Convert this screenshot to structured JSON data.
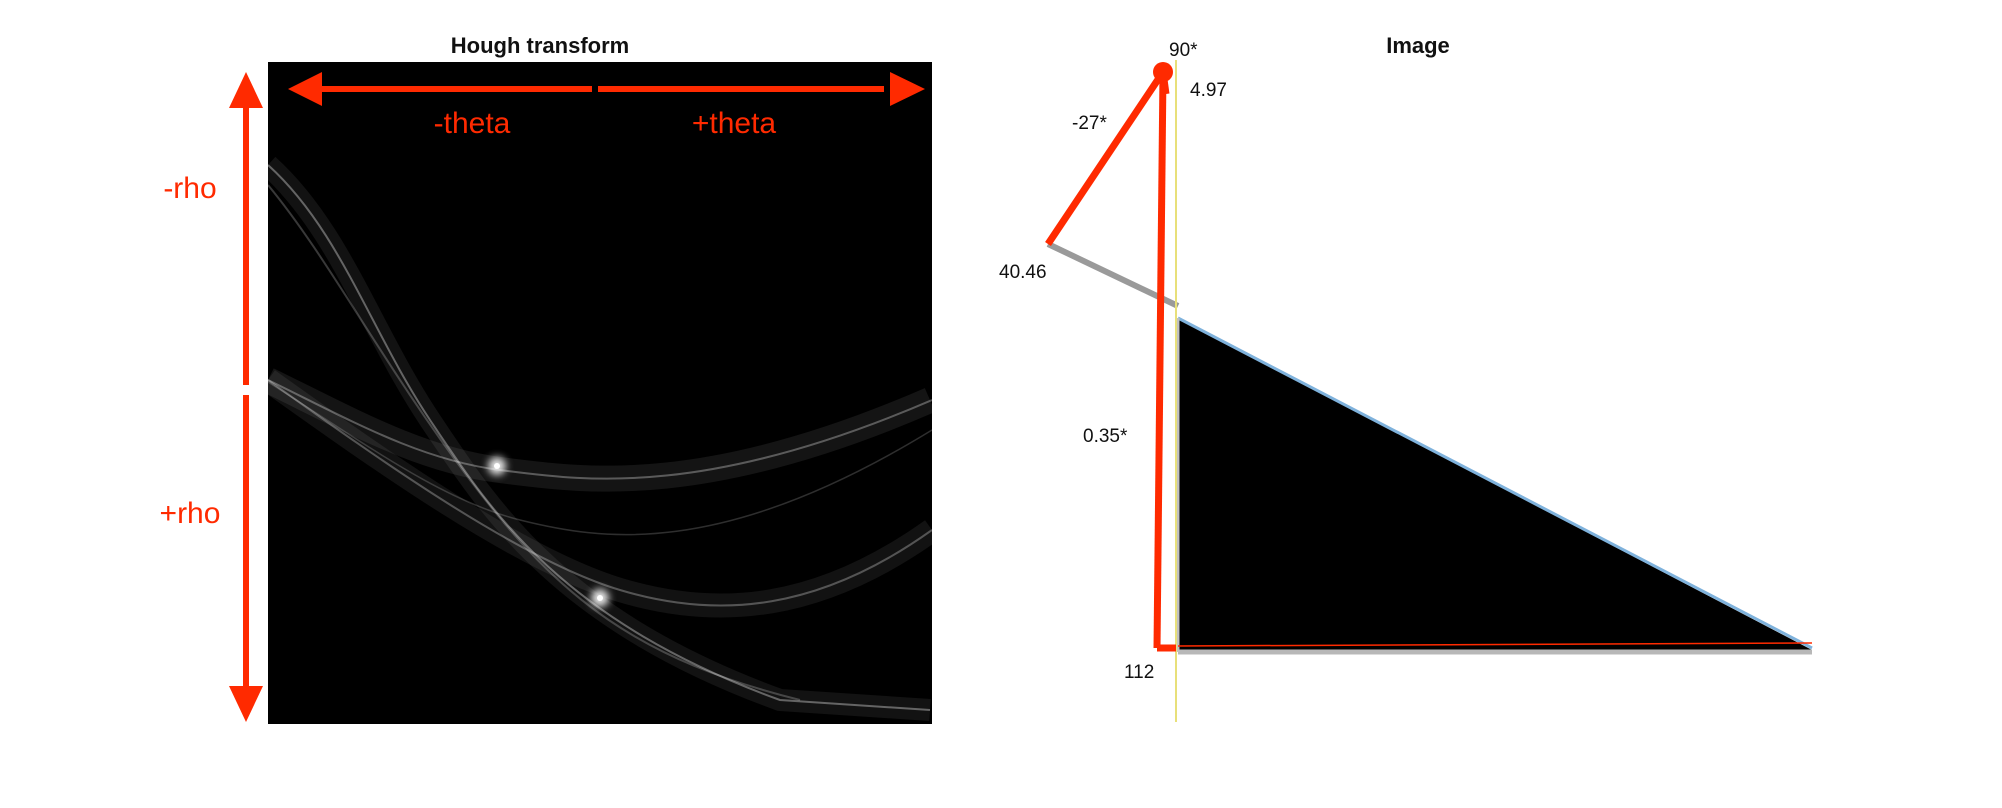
{
  "colors": {
    "annotation": "#ff2a00",
    "panel_background": "#000000",
    "hough_curve": "#ffffff",
    "gray_line": "#9a9a9a",
    "vertical_guide": "#e8e07a",
    "hypotenuse": "#7fb2dc"
  },
  "hough_panel": {
    "title": "Hough transform",
    "labels": {
      "neg_theta": "-theta",
      "pos_theta": "+theta",
      "neg_rho": "-rho",
      "pos_rho": "+rho"
    }
  },
  "image_panel": {
    "title": "Image",
    "measurements": {
      "angle_90": "90*",
      "distance_top": "4.97",
      "angle_neg27": "-27*",
      "distance_left": "40.46",
      "angle_035": "0.35*",
      "distance_bottom": "112"
    }
  }
}
